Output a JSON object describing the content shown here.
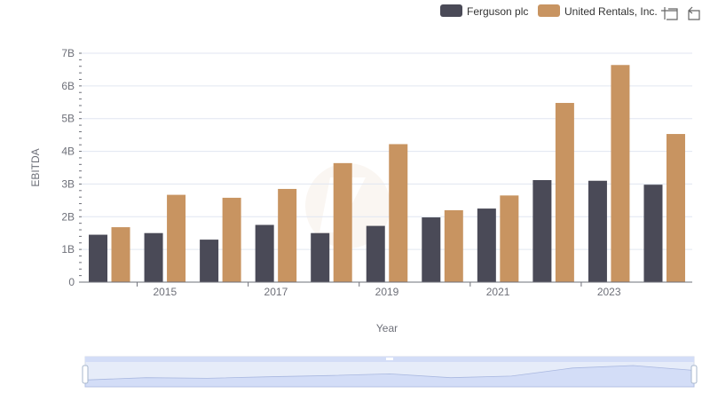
{
  "toolbar": {
    "icons": [
      "zoom-icon",
      "restore-icon"
    ]
  },
  "chart_data": {
    "type": "bar",
    "categories": [
      "2014",
      "2015",
      "2016",
      "2017",
      "2018",
      "2019",
      "2020",
      "2021",
      "2022",
      "2023",
      "2024"
    ],
    "x_tick_labels": [
      "2015",
      "2017",
      "2019",
      "2021",
      "2023"
    ],
    "series": [
      {
        "name": "Ferguson plc",
        "color": "#4a4a57",
        "values": [
          1.45,
          1.5,
          1.3,
          1.75,
          1.5,
          1.72,
          1.98,
          2.25,
          3.12,
          3.1,
          2.98
        ]
      },
      {
        "name": "United Rentals, Inc.",
        "color": "#c89461",
        "values": [
          1.68,
          2.67,
          2.58,
          2.85,
          3.64,
          4.22,
          2.2,
          2.65,
          5.48,
          6.64,
          4.53
        ]
      }
    ],
    "y_tick_labels": [
      "0",
      "1B",
      "2B",
      "3B",
      "4B",
      "5B",
      "6B",
      "7B"
    ],
    "ylim": [
      0,
      7
    ],
    "xlabel": "Year",
    "ylabel": "EBITDA",
    "legend_position": "top-right",
    "grid": true,
    "datazoom": {
      "range": [
        0,
        1
      ],
      "colors": {
        "fill": "#e6ecf9",
        "selected": "#d3ddf7",
        "border": "#c4cce0"
      }
    }
  }
}
